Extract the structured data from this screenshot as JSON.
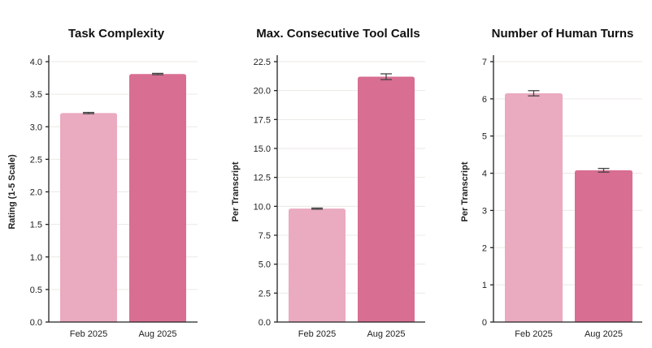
{
  "chart_data": [
    {
      "type": "bar",
      "title": "Task Complexity",
      "categories": [
        "Feb 2025",
        "Aug 2025"
      ],
      "values": [
        3.21,
        3.81
      ],
      "errors": [
        0.01,
        0.01
      ],
      "ylabel": "Rating (1-5 Scale)",
      "xlabel": "",
      "ylim": [
        0,
        4.0
      ],
      "yticks": [
        "0.0",
        "0.5",
        "1.0",
        "1.5",
        "2.0",
        "2.5",
        "3.0",
        "3.5",
        "4.0"
      ],
      "colors": [
        "#eaaabf",
        "#d86e92"
      ],
      "grid": true
    },
    {
      "type": "bar",
      "title": "Max. Consecutive Tool Calls",
      "categories": [
        "Feb 2025",
        "Aug 2025"
      ],
      "values": [
        9.8,
        21.2
      ],
      "errors": [
        0.05,
        0.25
      ],
      "ylabel": "Per Transcript",
      "xlabel": "",
      "ylim": [
        0,
        22.5
      ],
      "yticks": [
        "0.0",
        "2.5",
        "5.0",
        "7.5",
        "10.0",
        "12.5",
        "15.0",
        "17.5",
        "20.0",
        "22.5"
      ],
      "colors": [
        "#eaaabf",
        "#d86e92"
      ],
      "grid": true
    },
    {
      "type": "bar",
      "title": "Number of Human Turns",
      "categories": [
        "Feb 2025",
        "Aug 2025"
      ],
      "values": [
        6.15,
        4.08
      ],
      "errors": [
        0.07,
        0.05
      ],
      "ylabel": "Per Transcript",
      "xlabel": "",
      "ylim": [
        0,
        7
      ],
      "yticks": [
        "0",
        "1",
        "2",
        "3",
        "4",
        "5",
        "6",
        "7"
      ],
      "colors": [
        "#eaaabf",
        "#d86e92"
      ],
      "grid": true
    }
  ]
}
